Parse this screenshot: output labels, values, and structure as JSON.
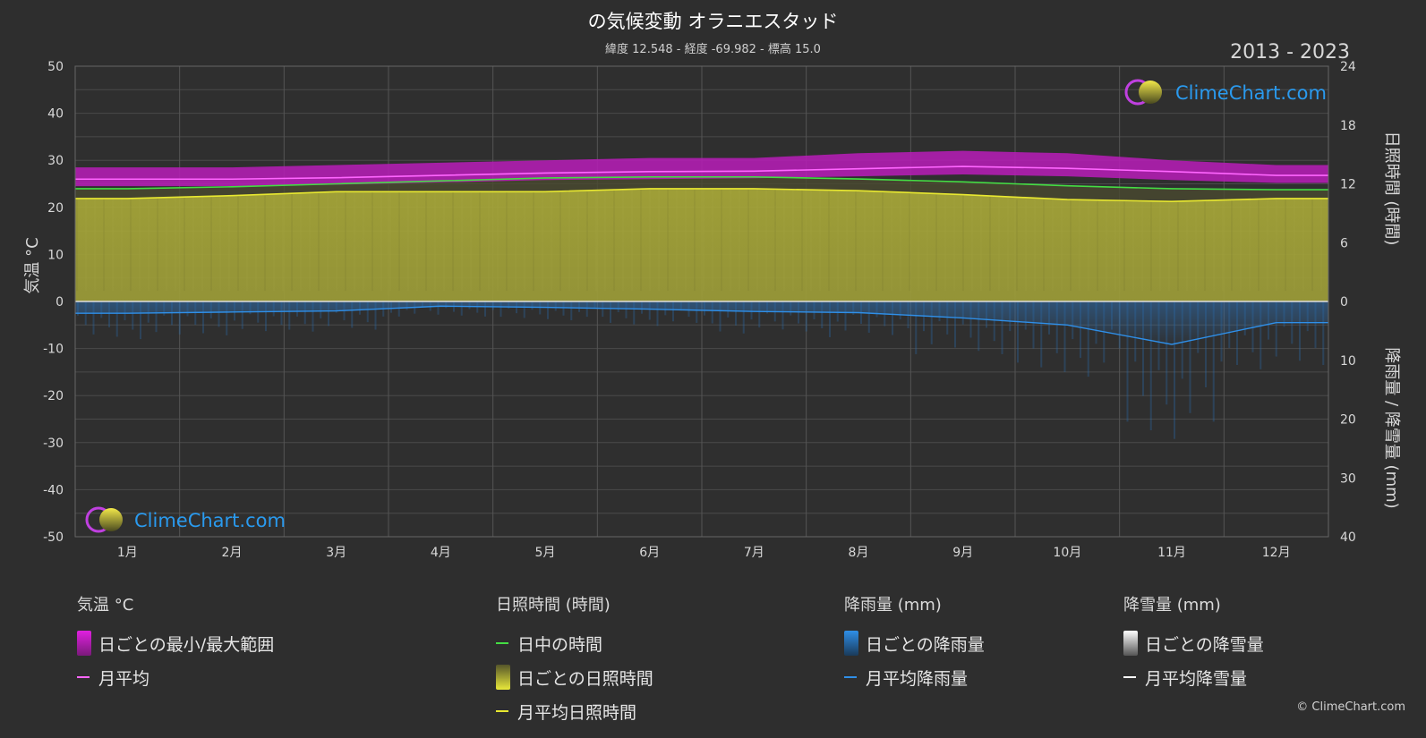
{
  "header": {
    "title": "の気候変動 オラニエスタッド",
    "subtitle": "緯度 12.548 - 経度 -69.982 - 標高 15.0",
    "years": "2013 - 2023",
    "copyright": "© ClimeChart.com"
  },
  "watermark": {
    "text": "ClimeChart.com"
  },
  "axes": {
    "left_label": "気温 °C",
    "right_top_label": "日照時間 (時間)",
    "right_bottom_label": "降雨量 / 降雪量 (mm)",
    "left_ticks": [
      "50",
      "40",
      "30",
      "20",
      "10",
      "0",
      "-10",
      "-20",
      "-30",
      "-40",
      "-50"
    ],
    "right_top_ticks": [
      "24",
      "18",
      "12",
      "6",
      "0"
    ],
    "right_bottom_ticks": [
      "10",
      "20",
      "30",
      "40"
    ]
  },
  "chart_data": {
    "type": "area",
    "categories": [
      "1月",
      "2月",
      "3月",
      "4月",
      "5月",
      "6月",
      "7月",
      "8月",
      "9月",
      "10月",
      "11月",
      "12月"
    ],
    "temperature_ylim": [
      -50,
      50
    ],
    "sunshine_ylim": [
      0,
      24
    ],
    "precipitation_ylim": [
      0,
      40
    ],
    "series": [
      {
        "name": "月平均",
        "axis": "temperature",
        "color": "#ff66ff",
        "values": [
          26.0,
          26.0,
          26.3,
          26.8,
          27.3,
          27.6,
          27.7,
          28.2,
          28.7,
          28.3,
          27.6,
          26.8
        ]
      },
      {
        "name": "日ごとの最小/最大範囲",
        "axis": "temperature",
        "color": "#d020d0",
        "min": [
          24.5,
          24.5,
          24.8,
          25.3,
          25.8,
          26.0,
          26.2,
          26.6,
          27.0,
          26.6,
          25.8,
          25.2
        ],
        "max": [
          28.5,
          28.5,
          29.0,
          29.5,
          30.0,
          30.5,
          30.5,
          31.5,
          32.0,
          31.5,
          30.0,
          29.0
        ]
      },
      {
        "name": "日中の時間",
        "axis": "sunshine",
        "color": "#44dd44",
        "values": [
          11.5,
          11.7,
          12.0,
          12.3,
          12.6,
          12.7,
          12.7,
          12.5,
          12.2,
          11.8,
          11.5,
          11.4
        ]
      },
      {
        "name": "月平均日照時間",
        "axis": "sunshine",
        "color": "#e8e830",
        "values": [
          10.5,
          10.8,
          11.2,
          11.2,
          11.2,
          11.5,
          11.5,
          11.3,
          10.9,
          10.4,
          10.2,
          10.5
        ]
      },
      {
        "name": "月平均降雨量",
        "axis": "precipitation",
        "color": "#2f8fe8",
        "values": [
          2.0,
          1.8,
          1.6,
          0.8,
          1.0,
          1.3,
          1.7,
          1.9,
          2.8,
          4.0,
          7.3,
          3.6
        ]
      },
      {
        "name": "月平均降雪量",
        "axis": "precipitation",
        "color": "#ffffff",
        "values": [
          0,
          0,
          0,
          0,
          0,
          0,
          0,
          0,
          0,
          0,
          0,
          0
        ]
      }
    ]
  },
  "legend": {
    "groups": [
      {
        "title": "気温 °C",
        "items": [
          {
            "label": "日ごとの最小/最大範囲",
            "kind": "box",
            "color": "#e020e0"
          },
          {
            "label": "月平均",
            "kind": "line",
            "color": "#ff66ff"
          }
        ]
      },
      {
        "title": "日照時間 (時間)",
        "items": [
          {
            "label": "日中の時間",
            "kind": "line",
            "color": "#44dd44"
          },
          {
            "label": "日ごとの日照時間",
            "kind": "box",
            "color": "#d6d63a"
          },
          {
            "label": "月平均日照時間",
            "kind": "line",
            "color": "#e8e830"
          }
        ]
      },
      {
        "title": "降雨量 (mm)",
        "items": [
          {
            "label": "日ごとの降雨量",
            "kind": "box",
            "color": "#2f8fe8"
          },
          {
            "label": "月平均降雨量",
            "kind": "line",
            "color": "#2f8fe8"
          }
        ]
      },
      {
        "title": "降雪量 (mm)",
        "items": [
          {
            "label": "日ごとの降雪量",
            "kind": "box",
            "color": "#dddddd"
          },
          {
            "label": "月平均降雪量",
            "kind": "line",
            "color": "#ffffff"
          }
        ]
      }
    ]
  }
}
